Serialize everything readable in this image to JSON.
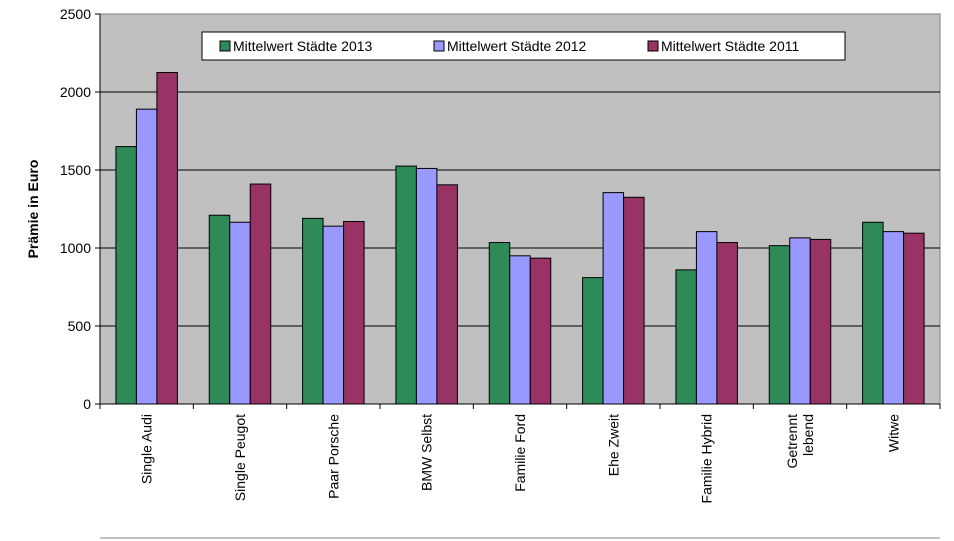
{
  "chart_data": {
    "type": "bar",
    "title": "",
    "xlabel": "",
    "ylabel": "Prämie in Euro",
    "ylim": [
      0,
      2500
    ],
    "yticks": [
      0,
      500,
      1000,
      1500,
      2000,
      2500
    ],
    "grid": true,
    "legend_position": "top",
    "categories": [
      [
        "Single Audi"
      ],
      [
        "Single Peugot"
      ],
      [
        "Paar Porsche"
      ],
      [
        "BMW Selbst"
      ],
      [
        "Familie Ford"
      ],
      [
        "Ehe Zweit"
      ],
      [
        "Familie Hybrid"
      ],
      [
        "Getrennt",
        "lebend"
      ],
      [
        "Witwe"
      ]
    ],
    "series": [
      {
        "name": "Mittelwert Städte 2013",
        "color": "#2e8b57",
        "values": [
          1650,
          1210,
          1190,
          1525,
          1035,
          810,
          860,
          1015,
          1165
        ]
      },
      {
        "name": "Mittelwert Städte 2012",
        "color": "#9999ff",
        "values": [
          1890,
          1165,
          1140,
          1510,
          950,
          1355,
          1105,
          1065,
          1105
        ]
      },
      {
        "name": "Mittelwert Städte 2011",
        "color": "#993366",
        "values": [
          2125,
          1410,
          1170,
          1405,
          935,
          1325,
          1035,
          1055,
          1095
        ]
      }
    ],
    "plot_background": "#c0c0c0"
  }
}
